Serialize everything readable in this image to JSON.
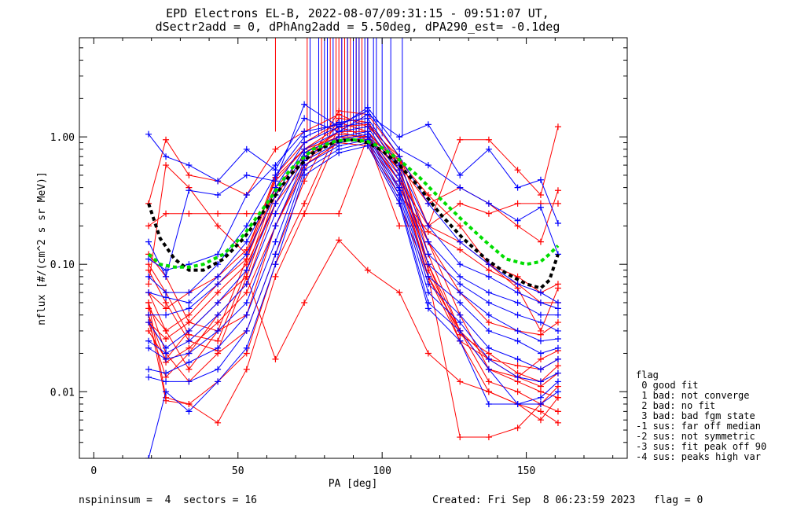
{
  "chart_data": {
    "type": "line",
    "title": "EPD Electrons EL-B, 2022-08-07/09:31:15 - 09:51:07 UT,",
    "subtitle": "dSectr2add = 0, dPhAng2add = 5.50deg, dPA290_est=  -0.1deg",
    "xlabel": "PA [deg]",
    "ylabel": "nflux [#/(cm^2 s sr MeV)]",
    "xlim": [
      -5,
      185
    ],
    "ylim": [
      0.003,
      6
    ],
    "y_scale": "log",
    "x_ticks": [
      0,
      50,
      100,
      150
    ],
    "x_tick_labels": [
      "0",
      "50",
      "100",
      "150"
    ],
    "y_ticks": [
      0.01,
      0.1,
      1.0
    ],
    "y_tick_labels": [
      "0.01",
      "0.10",
      "1.00"
    ],
    "grid": false,
    "pa_bins": [
      19,
      25,
      33,
      43,
      53,
      63,
      73,
      85,
      95,
      106,
      116,
      127,
      137,
      147,
      155,
      161
    ],
    "series": [
      {
        "color": "#ff0000",
        "values": [
          0.12,
          0.08,
          0.035,
          0.03,
          0.11,
          0.48,
          0.8,
          1.2,
          1.25,
          0.6,
          0.1,
          0.03,
          0.018,
          0.016,
          0.015,
          0.018
        ]
      },
      {
        "color": "#ff0000",
        "values": [
          0.1,
          0.06,
          0.028,
          0.025,
          0.09,
          0.4,
          0.7,
          1.1,
          1.1,
          0.55,
          0.09,
          0.028,
          0.02,
          0.014,
          0.012,
          0.016
        ]
      },
      {
        "color": "#ff0000",
        "values": [
          0.09,
          0.05,
          0.025,
          0.021,
          0.08,
          0.35,
          0.65,
          1.0,
          1.0,
          0.5,
          0.08,
          0.025,
          0.018,
          0.013,
          0.011,
          0.014
        ]
      },
      {
        "color": "#ff0000",
        "values": [
          0.3,
          0.95,
          0.5,
          0.45,
          0.35,
          0.8,
          1.1,
          1.5,
          1.2,
          0.7,
          0.2,
          0.95,
          0.95,
          0.55,
          0.35,
          1.2
        ]
      },
      {
        "color": "#ff0000",
        "values": [
          0.07,
          0.6,
          0.4,
          0.2,
          0.12,
          0.5,
          0.9,
          1.3,
          1.1,
          0.6,
          0.3,
          0.4,
          0.3,
          0.2,
          0.15,
          0.38
        ]
      },
      {
        "color": "#ff0000",
        "values": [
          0.2,
          0.25,
          0.25,
          0.25,
          0.25,
          0.25,
          0.25,
          0.25,
          1.0,
          0.65,
          0.35,
          0.2,
          0.1,
          0.065,
          0.03,
          0.065
        ]
      },
      {
        "color": "#ff0000",
        "values": [
          0.05,
          0.02,
          0.012,
          0.02,
          0.03,
          0.12,
          0.45,
          1.4,
          1.3,
          0.65,
          0.15,
          0.04,
          0.015,
          0.012,
          0.01,
          0.009
        ]
      },
      {
        "color": "#ff0000",
        "values": [
          0.06,
          0.03,
          0.015,
          0.03,
          0.04,
          0.2,
          0.55,
          1.6,
          1.5,
          0.7,
          0.12,
          0.03,
          0.012,
          0.01,
          0.008,
          0.007
        ]
      },
      {
        "color": "#ff0000",
        "values": [
          0.05,
          0.009,
          0.008,
          0.012,
          0.02,
          0.1,
          0.3,
          1.2,
          1.0,
          0.55,
          0.1,
          0.025,
          0.01,
          0.008,
          0.007,
          0.0057
        ]
      },
      {
        "color": "#ff0000",
        "values": [
          0.04,
          0.0085,
          0.008,
          0.0057,
          0.015,
          0.08,
          0.25,
          1.05,
          1.0,
          0.45,
          0.08,
          0.0044,
          0.0044,
          0.0052,
          0.008,
          0.011
        ]
      },
      {
        "color": "#ff0000",
        "values": [
          0.03,
          0.018,
          0.03,
          0.05,
          0.08,
          0.018,
          0.05,
          0.155,
          0.09,
          0.06,
          0.02,
          0.012,
          0.01,
          0.008,
          0.006,
          0.009
        ]
      },
      {
        "color": "#ff0000",
        "values": [
          0.04,
          0.017,
          0.022,
          0.035,
          0.06,
          0.2,
          0.6,
          0.9,
          0.85,
          0.3,
          0.08,
          0.03,
          0.015,
          0.013,
          0.018,
          0.021
        ]
      },
      {
        "color": "#ff0000",
        "values": [
          0.035,
          0.013,
          0.02,
          0.04,
          0.07,
          0.3,
          0.75,
          1.1,
          0.95,
          0.2,
          0.2,
          0.3,
          0.25,
          0.3,
          0.3,
          0.3
        ]
      },
      {
        "color": "#ff0000",
        "values": [
          0.06,
          0.045,
          0.06,
          0.08,
          0.13,
          0.45,
          0.8,
          1.0,
          0.9,
          0.4,
          0.15,
          0.06,
          0.035,
          0.03,
          0.028,
          0.035
        ]
      },
      {
        "color": "#ff0000",
        "values": [
          0.045,
          0.03,
          0.04,
          0.07,
          0.11,
          0.4,
          0.7,
          0.95,
          0.95,
          0.45,
          0.2,
          0.15,
          0.1,
          0.08,
          0.06,
          0.07
        ]
      },
      {
        "color": "#ff0000",
        "values": [
          0.035,
          0.026,
          0.035,
          0.06,
          0.1,
          0.3,
          0.6,
          0.9,
          0.85,
          0.35,
          0.18,
          0.13,
          0.09,
          0.07,
          0.05,
          0.05
        ]
      },
      {
        "color": "#0000ff",
        "values": [
          1.05,
          0.7,
          0.6,
          0.45,
          0.8,
          0.55,
          1.4,
          1.1,
          1.5,
          1.0,
          1.25,
          0.5,
          0.8,
          0.4,
          0.46,
          0.21
        ]
      },
      {
        "color": "#0000ff",
        "values": [
          0.15,
          0.08,
          0.38,
          0.35,
          0.5,
          0.45,
          1.8,
          1.2,
          1.7,
          0.8,
          0.6,
          0.4,
          0.3,
          0.22,
          0.28,
          0.12
        ]
      },
      {
        "color": "#0000ff",
        "values": [
          0.11,
          0.09,
          0.1,
          0.12,
          0.35,
          0.6,
          1.1,
          1.25,
          1.6,
          0.7,
          0.3,
          0.15,
          0.1,
          0.07,
          0.06,
          0.05
        ]
      },
      {
        "color": "#0000ff",
        "values": [
          0.08,
          0.06,
          0.06,
          0.1,
          0.2,
          0.5,
          1.0,
          1.3,
          1.4,
          0.6,
          0.2,
          0.1,
          0.08,
          0.06,
          0.05,
          0.045
        ]
      },
      {
        "color": "#0000ff",
        "values": [
          0.06,
          0.055,
          0.05,
          0.08,
          0.15,
          0.4,
          0.9,
          1.2,
          1.3,
          0.55,
          0.15,
          0.08,
          0.06,
          0.05,
          0.04,
          0.04
        ]
      },
      {
        "color": "#0000ff",
        "values": [
          0.04,
          0.04,
          0.045,
          0.07,
          0.12,
          0.35,
          0.8,
          1.1,
          1.2,
          0.5,
          0.12,
          0.07,
          0.05,
          0.04,
          0.035,
          0.03
        ]
      },
      {
        "color": "#0000ff",
        "values": [
          0.035,
          0.022,
          0.03,
          0.05,
          0.09,
          0.3,
          0.75,
          1.0,
          1.1,
          0.45,
          0.1,
          0.06,
          0.04,
          0.03,
          0.025,
          0.026
        ]
      },
      {
        "color": "#0000ff",
        "values": [
          0.025,
          0.02,
          0.025,
          0.04,
          0.07,
          0.25,
          0.7,
          0.95,
          1.05,
          0.4,
          0.08,
          0.05,
          0.03,
          0.025,
          0.02,
          0.022
        ]
      },
      {
        "color": "#0000ff",
        "values": [
          0.022,
          0.018,
          0.02,
          0.03,
          0.05,
          0.2,
          0.65,
          0.9,
          1.0,
          0.38,
          0.07,
          0.04,
          0.022,
          0.018,
          0.015,
          0.018
        ]
      },
      {
        "color": "#0000ff",
        "values": [
          0.015,
          0.014,
          0.017,
          0.022,
          0.04,
          0.15,
          0.6,
          0.85,
          0.95,
          0.35,
          0.06,
          0.035,
          0.018,
          0.013,
          0.012,
          0.014
        ]
      },
      {
        "color": "#0000ff",
        "values": [
          0.013,
          0.012,
          0.012,
          0.015,
          0.03,
          0.12,
          0.55,
          0.8,
          0.9,
          0.32,
          0.05,
          0.03,
          0.015,
          0.008,
          0.008,
          0.01
        ]
      },
      {
        "color": "#0000ff",
        "values": [
          0.003,
          0.01,
          0.007,
          0.012,
          0.022,
          0.1,
          0.5,
          0.75,
          0.85,
          0.3,
          0.045,
          0.025,
          0.008,
          0.008,
          0.009,
          0.012
        ]
      }
    ],
    "model_curves": [
      {
        "color": "#000000",
        "style": "dashed",
        "x": [
          19,
          23,
          28,
          33,
          38,
          45,
          52,
          60,
          68,
          76,
          84,
          90,
          95,
          100,
          106,
          113,
          120,
          128,
          136,
          143,
          150,
          155,
          158,
          161
        ],
        "values": [
          0.3,
          0.16,
          0.11,
          0.09,
          0.09,
          0.11,
          0.16,
          0.28,
          0.5,
          0.75,
          0.92,
          0.95,
          0.9,
          0.78,
          0.6,
          0.4,
          0.25,
          0.16,
          0.11,
          0.085,
          0.07,
          0.065,
          0.075,
          0.12
        ]
      },
      {
        "color": "#00dd00",
        "style": "dashed",
        "x": [
          19,
          23,
          28,
          33,
          38,
          45,
          52,
          60,
          68,
          76,
          84,
          90,
          95,
          100,
          106,
          113,
          120,
          128,
          136,
          143,
          150,
          155,
          158,
          161
        ],
        "values": [
          0.12,
          0.1,
          0.095,
          0.095,
          0.1,
          0.12,
          0.17,
          0.3,
          0.55,
          0.8,
          0.93,
          0.95,
          0.92,
          0.82,
          0.66,
          0.48,
          0.33,
          0.22,
          0.15,
          0.11,
          0.1,
          0.105,
          0.12,
          0.14
        ]
      }
    ],
    "spikes": {
      "red_x": [
        63,
        74,
        79,
        82,
        84,
        85,
        86,
        87,
        88,
        89,
        90,
        91,
        92,
        93,
        95
      ],
      "blue_x": [
        75,
        78,
        80,
        81,
        83,
        86,
        88,
        90,
        91,
        92,
        94,
        95,
        97,
        98,
        100,
        103,
        107
      ],
      "from_y": 1.1,
      "to_y": 6
    },
    "legend": {
      "placement": "right",
      "title": "flag",
      "entries": [
        " 0 good fit",
        " 1 bad: not converge",
        " 2 bad: no fit",
        " 3 bad: bad fgm state",
        "-1 sus: far off median",
        "-2 sus: not symmetric",
        "-3 sus: fit peak off 90",
        "-4 sus: peaks high var"
      ]
    },
    "footer": {
      "left": "nspininsum =  4  sectors = 16",
      "right": "Created: Fri Sep  8 06:23:59 2023   flag = 0"
    }
  }
}
